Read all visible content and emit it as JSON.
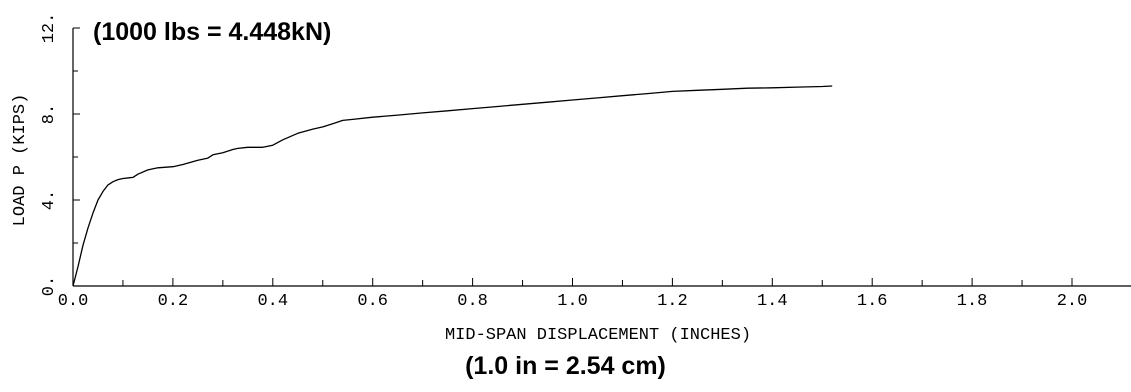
{
  "chart_data": {
    "type": "line",
    "xlabel": "MID-SPAN DISPLACEMENT (INCHES)",
    "ylabel": "LOAD P (KIPS)",
    "xlim": [
      0,
      2.1
    ],
    "ylim": [
      0,
      12
    ],
    "x_ticks": [
      0.0,
      0.2,
      0.4,
      0.6,
      0.8,
      1.0,
      1.2,
      1.4,
      1.6,
      1.8,
      2.0
    ],
    "x_tick_labels": [
      "0.0",
      "0.2",
      "0.4",
      "0.6",
      "0.8",
      "1.0",
      "1.2",
      "1.4",
      "1.6",
      "1.8",
      "2.0"
    ],
    "y_ticks": [
      0,
      4,
      8,
      12
    ],
    "y_tick_labels": [
      "0.",
      "4.",
      "8.",
      "12."
    ],
    "grid": false,
    "annotations": [
      "(1000 lbs = 4.448kN)",
      "(1.0 in = 2.54 cm)"
    ],
    "series": [
      {
        "x": [
          0.0,
          0.01,
          0.02,
          0.03,
          0.04,
          0.05,
          0.06,
          0.07,
          0.08,
          0.09,
          0.1,
          0.12,
          0.13,
          0.15,
          0.17,
          0.2,
          0.22,
          0.25,
          0.27,
          0.28,
          0.3,
          0.32,
          0.33,
          0.35,
          0.38,
          0.4,
          0.42,
          0.45,
          0.48,
          0.5,
          0.52,
          0.54,
          0.56,
          0.6,
          0.65,
          0.7,
          0.75,
          0.8,
          0.85,
          0.9,
          0.95,
          1.0,
          1.05,
          1.1,
          1.15,
          1.2,
          1.25,
          1.3,
          1.35,
          1.4,
          1.45,
          1.5,
          1.52
        ],
        "y": [
          0.0,
          0.9,
          1.9,
          2.7,
          3.4,
          4.0,
          4.4,
          4.7,
          4.85,
          4.95,
          5.0,
          5.05,
          5.2,
          5.4,
          5.5,
          5.55,
          5.65,
          5.85,
          5.95,
          6.1,
          6.2,
          6.35,
          6.4,
          6.45,
          6.45,
          6.55,
          6.8,
          7.1,
          7.3,
          7.4,
          7.55,
          7.7,
          7.75,
          7.85,
          7.95,
          8.05,
          8.15,
          8.25,
          8.35,
          8.45,
          8.55,
          8.65,
          8.75,
          8.85,
          8.95,
          9.05,
          9.1,
          9.15,
          9.2,
          9.22,
          9.25,
          9.28,
          9.3
        ]
      }
    ]
  }
}
